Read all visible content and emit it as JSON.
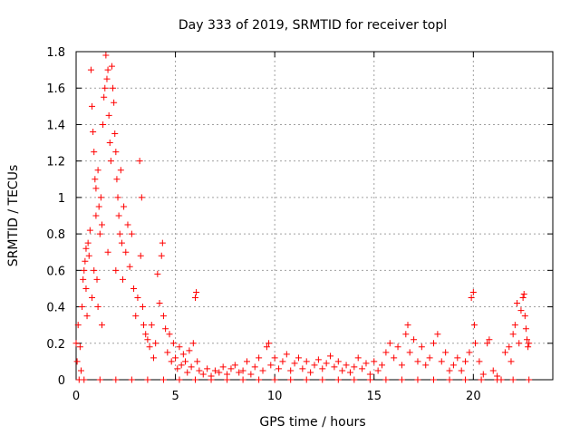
{
  "chart_data": {
    "type": "scatter",
    "title": "Day 333 of 2019, SRMTID for receiver topl",
    "xlabel": "GPS time / hours",
    "ylabel": "SRMTID / TECUs",
    "xlim": [
      0,
      24
    ],
    "ylim": [
      0,
      1.8
    ],
    "grid": true,
    "legend": "none",
    "marker": "+",
    "color": "#ff0000",
    "x_ticks": [
      0,
      5,
      10,
      15,
      20
    ],
    "y_ticks": [
      0,
      0.2,
      0.4,
      0.6,
      0.8,
      1,
      1.2,
      1.4,
      1.6,
      1.8
    ],
    "x_tick_labels": [
      "0",
      "5",
      "10",
      "15",
      "20"
    ],
    "y_tick_labels": [
      "0",
      "0.2",
      "0.4",
      "0.6",
      "0.8",
      "1",
      "1.2",
      "1.4",
      "1.6",
      "1.8"
    ],
    "points": [
      [
        0.0,
        0.2
      ],
      [
        0.05,
        0.1
      ],
      [
        0.1,
        0.3
      ],
      [
        0.15,
        0.0
      ],
      [
        0.2,
        0.18
      ],
      [
        0.25,
        0.05
      ],
      [
        0.3,
        0.4
      ],
      [
        0.35,
        0.55
      ],
      [
        0.4,
        0.6
      ],
      [
        0.45,
        0.65
      ],
      [
        0.5,
        0.5
      ],
      [
        0.5,
        0.72
      ],
      [
        0.55,
        0.35
      ],
      [
        0.6,
        0.75
      ],
      [
        0.65,
        0.68
      ],
      [
        0.7,
        0.82
      ],
      [
        0.75,
        1.7
      ],
      [
        0.8,
        1.5
      ],
      [
        0.8,
        0.45
      ],
      [
        0.85,
        1.36
      ],
      [
        0.9,
        1.25
      ],
      [
        0.9,
        0.6
      ],
      [
        0.95,
        1.1
      ],
      [
        1.0,
        1.05
      ],
      [
        1.0,
        0.9
      ],
      [
        1.05,
        0.55
      ],
      [
        1.1,
        1.15
      ],
      [
        1.1,
        0.4
      ],
      [
        1.15,
        0.95
      ],
      [
        1.2,
        0.8
      ],
      [
        1.25,
        1.0
      ],
      [
        1.3,
        0.85
      ],
      [
        1.3,
        0.3
      ],
      [
        1.35,
        1.4
      ],
      [
        1.4,
        1.55
      ],
      [
        1.45,
        1.6
      ],
      [
        1.5,
        1.78
      ],
      [
        1.55,
        1.65
      ],
      [
        1.6,
        1.7
      ],
      [
        1.6,
        0.7
      ],
      [
        1.65,
        1.45
      ],
      [
        1.7,
        1.3
      ],
      [
        1.75,
        1.2
      ],
      [
        1.8,
        1.72
      ],
      [
        1.85,
        1.6
      ],
      [
        1.9,
        1.52
      ],
      [
        1.95,
        1.35
      ],
      [
        2.0,
        1.25
      ],
      [
        2.0,
        0.6
      ],
      [
        2.05,
        1.1
      ],
      [
        2.1,
        1.0
      ],
      [
        2.15,
        0.9
      ],
      [
        2.2,
        0.8
      ],
      [
        2.25,
        1.15
      ],
      [
        2.3,
        0.75
      ],
      [
        2.35,
        0.55
      ],
      [
        2.4,
        0.95
      ],
      [
        2.5,
        0.7
      ],
      [
        2.6,
        0.85
      ],
      [
        2.7,
        0.62
      ],
      [
        2.8,
        0.8
      ],
      [
        2.9,
        0.5
      ],
      [
        3.0,
        0.35
      ],
      [
        3.1,
        0.45
      ],
      [
        3.2,
        1.2
      ],
      [
        3.25,
        0.68
      ],
      [
        3.3,
        1.0
      ],
      [
        3.35,
        0.4
      ],
      [
        3.4,
        0.3
      ],
      [
        3.5,
        0.25
      ],
      [
        3.6,
        0.22
      ],
      [
        3.7,
        0.18
      ],
      [
        3.8,
        0.3
      ],
      [
        3.9,
        0.12
      ],
      [
        4.0,
        0.2
      ],
      [
        4.1,
        0.58
      ],
      [
        4.2,
        0.42
      ],
      [
        4.3,
        0.68
      ],
      [
        4.35,
        0.75
      ],
      [
        4.4,
        0.35
      ],
      [
        4.5,
        0.28
      ],
      [
        4.6,
        0.15
      ],
      [
        4.7,
        0.25
      ],
      [
        4.8,
        0.1
      ],
      [
        4.9,
        0.2
      ],
      [
        5.0,
        0.12
      ],
      [
        5.1,
        0.06
      ],
      [
        5.2,
        0.18
      ],
      [
        5.3,
        0.08
      ],
      [
        5.4,
        0.14
      ],
      [
        5.5,
        0.1
      ],
      [
        5.6,
        0.04
      ],
      [
        5.7,
        0.16
      ],
      [
        5.8,
        0.07
      ],
      [
        5.9,
        0.2
      ],
      [
        6.0,
        0.45
      ],
      [
        6.05,
        0.48
      ],
      [
        6.1,
        0.1
      ],
      [
        6.2,
        0.05
      ],
      [
        6.4,
        0.03
      ],
      [
        6.6,
        0.06
      ],
      [
        6.8,
        0.02
      ],
      [
        7.0,
        0.05
      ],
      [
        7.2,
        0.04
      ],
      [
        7.4,
        0.07
      ],
      [
        7.6,
        0.03
      ],
      [
        7.8,
        0.06
      ],
      [
        8.0,
        0.08
      ],
      [
        8.2,
        0.04
      ],
      [
        8.4,
        0.05
      ],
      [
        8.6,
        0.1
      ],
      [
        8.8,
        0.03
      ],
      [
        9.0,
        0.07
      ],
      [
        9.2,
        0.12
      ],
      [
        9.4,
        0.05
      ],
      [
        9.6,
        0.18
      ],
      [
        9.7,
        0.2
      ],
      [
        9.8,
        0.08
      ],
      [
        10.0,
        0.12
      ],
      [
        10.2,
        0.06
      ],
      [
        10.4,
        0.1
      ],
      [
        10.6,
        0.14
      ],
      [
        10.8,
        0.05
      ],
      [
        11.0,
        0.09
      ],
      [
        11.2,
        0.12
      ],
      [
        11.4,
        0.06
      ],
      [
        11.6,
        0.1
      ],
      [
        11.8,
        0.04
      ],
      [
        12.0,
        0.08
      ],
      [
        12.2,
        0.11
      ],
      [
        12.4,
        0.06
      ],
      [
        12.6,
        0.09
      ],
      [
        12.8,
        0.13
      ],
      [
        13.0,
        0.07
      ],
      [
        13.2,
        0.1
      ],
      [
        13.4,
        0.05
      ],
      [
        13.6,
        0.08
      ],
      [
        13.8,
        0.04
      ],
      [
        14.0,
        0.07
      ],
      [
        14.2,
        0.12
      ],
      [
        14.4,
        0.06
      ],
      [
        14.6,
        0.09
      ],
      [
        14.8,
        0.03
      ],
      [
        15.0,
        0.1
      ],
      [
        15.2,
        0.05
      ],
      [
        15.4,
        0.08
      ],
      [
        15.6,
        0.15
      ],
      [
        15.8,
        0.2
      ],
      [
        16.0,
        0.12
      ],
      [
        16.2,
        0.18
      ],
      [
        16.4,
        0.08
      ],
      [
        16.6,
        0.25
      ],
      [
        16.7,
        0.3
      ],
      [
        16.8,
        0.15
      ],
      [
        17.0,
        0.22
      ],
      [
        17.2,
        0.1
      ],
      [
        17.4,
        0.18
      ],
      [
        17.6,
        0.08
      ],
      [
        17.8,
        0.12
      ],
      [
        18.0,
        0.2
      ],
      [
        18.2,
        0.25
      ],
      [
        18.4,
        0.1
      ],
      [
        18.6,
        0.15
      ],
      [
        18.8,
        0.05
      ],
      [
        19.0,
        0.08
      ],
      [
        19.2,
        0.12
      ],
      [
        19.4,
        0.05
      ],
      [
        19.6,
        0.1
      ],
      [
        19.8,
        0.15
      ],
      [
        19.9,
        0.45
      ],
      [
        20.0,
        0.48
      ],
      [
        20.05,
        0.3
      ],
      [
        20.1,
        0.2
      ],
      [
        20.3,
        0.1
      ],
      [
        20.5,
        0.03
      ],
      [
        20.7,
        0.2
      ],
      [
        20.8,
        0.22
      ],
      [
        21.0,
        0.05
      ],
      [
        21.2,
        0.02
      ],
      [
        21.4,
        0.0
      ],
      [
        21.6,
        0.15
      ],
      [
        21.8,
        0.18
      ],
      [
        21.9,
        0.1
      ],
      [
        22.0,
        0.25
      ],
      [
        22.1,
        0.3
      ],
      [
        22.2,
        0.42
      ],
      [
        22.3,
        0.2
      ],
      [
        22.4,
        0.38
      ],
      [
        22.5,
        0.45
      ],
      [
        22.55,
        0.47
      ],
      [
        22.6,
        0.35
      ],
      [
        22.65,
        0.28
      ],
      [
        22.7,
        0.22
      ],
      [
        22.75,
        0.18
      ],
      [
        22.8,
        0.2
      ],
      [
        0.4,
        0.0
      ],
      [
        1.2,
        0.0
      ],
      [
        2.0,
        0.0
      ],
      [
        2.8,
        0.0
      ],
      [
        3.6,
        0.0
      ],
      [
        4.4,
        0.0
      ],
      [
        5.2,
        0.0
      ],
      [
        6.0,
        0.0
      ],
      [
        6.8,
        0.0
      ],
      [
        7.6,
        0.0
      ],
      [
        8.4,
        0.0
      ],
      [
        9.2,
        0.0
      ],
      [
        10.0,
        0.0
      ],
      [
        10.8,
        0.0
      ],
      [
        11.6,
        0.0
      ],
      [
        12.4,
        0.0
      ],
      [
        13.2,
        0.0
      ],
      [
        14.0,
        0.0
      ],
      [
        14.8,
        0.0
      ],
      [
        15.6,
        0.0
      ],
      [
        16.4,
        0.0
      ],
      [
        17.2,
        0.0
      ],
      [
        18.0,
        0.0
      ],
      [
        18.8,
        0.0
      ],
      [
        19.6,
        0.0
      ],
      [
        20.4,
        0.0
      ],
      [
        21.2,
        0.0
      ],
      [
        22.0,
        0.0
      ],
      [
        22.8,
        0.0
      ]
    ]
  }
}
